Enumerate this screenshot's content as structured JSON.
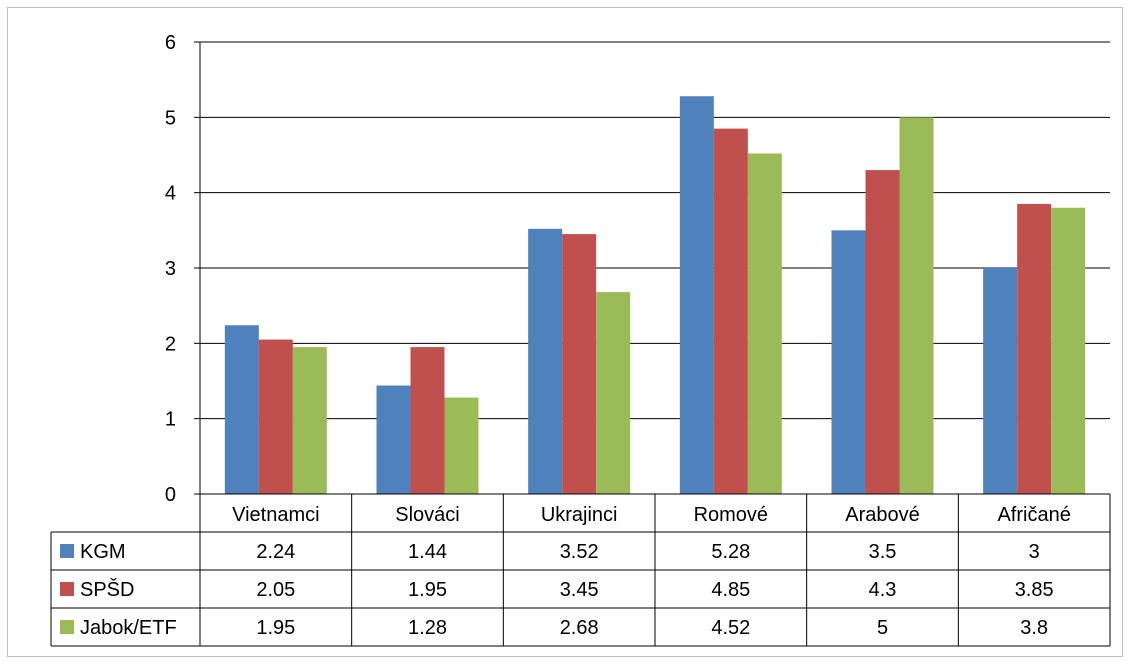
{
  "chart_data": {
    "type": "bar",
    "categories": [
      "Vietnamci",
      "Slováci",
      "Ukrajinci",
      "Romové",
      "Arabové",
      "Afričané"
    ],
    "series": [
      {
        "name": "KGM",
        "color": "#4f81bd",
        "values": [
          2.24,
          1.44,
          3.52,
          5.28,
          3.5,
          3
        ],
        "labels": [
          "2.24",
          "1.44",
          "3.52",
          "5.28",
          "3.5",
          "3"
        ]
      },
      {
        "name": "SPŠD",
        "color": "#c0504d",
        "values": [
          2.05,
          1.95,
          3.45,
          4.85,
          4.3,
          3.85
        ],
        "labels": [
          "2.05",
          "1.95",
          "3.45",
          "4.85",
          "4.3",
          "3.85"
        ]
      },
      {
        "name": "Jabok/ETF",
        "color": "#9bbb59",
        "values": [
          1.95,
          1.28,
          2.68,
          4.52,
          5,
          3.8
        ],
        "labels": [
          "1.95",
          "1.28",
          "2.68",
          "4.52",
          "5",
          "3.8"
        ]
      }
    ],
    "ylim": [
      0,
      6
    ],
    "yticks": [
      "0",
      "1",
      "2",
      "3",
      "4",
      "5",
      "6"
    ],
    "grid": true,
    "legend": "data-table-left"
  }
}
